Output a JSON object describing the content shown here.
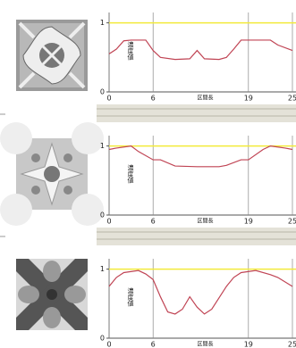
{
  "chart_data": [
    {
      "type": "line",
      "xlabel": "区間長",
      "ylabel": "濃度値",
      "x": [
        0,
        1,
        2,
        3,
        5,
        6,
        7,
        9,
        11,
        12,
        13,
        15,
        16,
        17,
        18,
        22,
        23,
        25
      ],
      "values": [
        0.55,
        0.62,
        0.74,
        0.75,
        0.75,
        0.6,
        0.5,
        0.47,
        0.48,
        0.6,
        0.48,
        0.47,
        0.5,
        0.62,
        0.75,
        0.75,
        0.68,
        0.6
      ],
      "color": "#c04454",
      "xlim": [
        0,
        25
      ],
      "ylim": [
        0,
        1.15
      ],
      "xticks": [
        0,
        6,
        19,
        25
      ],
      "yticks": [
        0,
        1
      ],
      "reference_line": {
        "value": 1,
        "color": "#f2ea3a"
      },
      "grid": true
    },
    {
      "type": "line",
      "xlabel": "区間長",
      "ylabel": "濃度値",
      "x": [
        0,
        1,
        3,
        4,
        6,
        7,
        9,
        12,
        15,
        16,
        18,
        19,
        21,
        22,
        24,
        25
      ],
      "values": [
        0.95,
        0.97,
        1.0,
        0.92,
        0.8,
        0.8,
        0.71,
        0.7,
        0.7,
        0.72,
        0.8,
        0.8,
        0.95,
        1.0,
        0.97,
        0.95
      ],
      "color": "#c04454",
      "xlim": [
        0,
        25
      ],
      "ylim": [
        0,
        1.15
      ],
      "xticks": [
        0,
        6,
        19,
        25
      ],
      "yticks": [
        0,
        1
      ],
      "reference_line": {
        "value": 1,
        "color": "#f2ea3a"
      },
      "grid": true
    },
    {
      "type": "line",
      "xlabel": "区間長",
      "ylabel": "濃度値",
      "x": [
        0,
        1,
        2,
        4,
        5,
        6,
        7,
        8,
        9,
        10,
        11,
        12,
        13,
        14,
        16,
        17,
        18,
        20,
        22,
        23,
        25
      ],
      "values": [
        0.75,
        0.88,
        0.95,
        0.98,
        0.93,
        0.85,
        0.6,
        0.38,
        0.35,
        0.42,
        0.6,
        0.45,
        0.35,
        0.42,
        0.75,
        0.88,
        0.95,
        0.98,
        0.92,
        0.88,
        0.75
      ],
      "color": "#c04454",
      "xlim": [
        0,
        25
      ],
      "ylim": [
        0,
        1.15
      ],
      "xticks": [
        0,
        6,
        19,
        25
      ],
      "yticks": [
        0,
        1
      ],
      "reference_line": {
        "value": 1,
        "color": "#f2ea3a"
      },
      "grid": true
    }
  ]
}
